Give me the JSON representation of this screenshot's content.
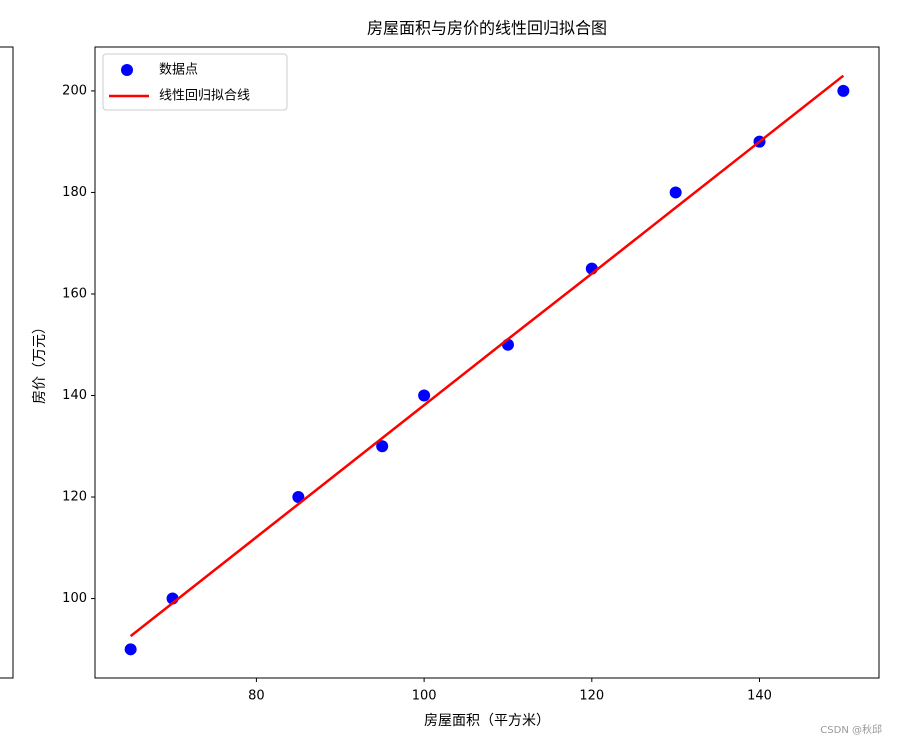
{
  "chart_data": {
    "type": "scatter",
    "title": "房屋面积与房价的线性回归拟合图",
    "x_label": "房屋面积（平方米）",
    "y_label": "房价（万元）",
    "x": [
      65,
      70,
      85,
      95,
      100,
      110,
      120,
      130,
      140,
      150
    ],
    "series": [
      {
        "name": "数据点",
        "color": "#0000ff",
        "style": "scatter",
        "values": [
          90,
          100,
          120,
          130,
          140,
          150,
          165,
          180,
          190,
          200
        ]
      },
      {
        "name": "线性回归拟合线",
        "color": "#ff0000",
        "style": "line",
        "values": [
          92.6,
          99.1,
          118.6,
          131.6,
          138.1,
          151.1,
          164.0,
          177.0,
          190.0,
          203.0
        ]
      }
    ],
    "xlim": [
      60.75,
      154.25
    ],
    "ylim": [
      84.35,
      208.65
    ],
    "xticks": [
      80,
      100,
      120,
      140
    ],
    "yticks": [
      100,
      120,
      140,
      160,
      180,
      200
    ],
    "grid": false,
    "legend": "upper-left",
    "watermark": "CSDN @秋邱"
  }
}
